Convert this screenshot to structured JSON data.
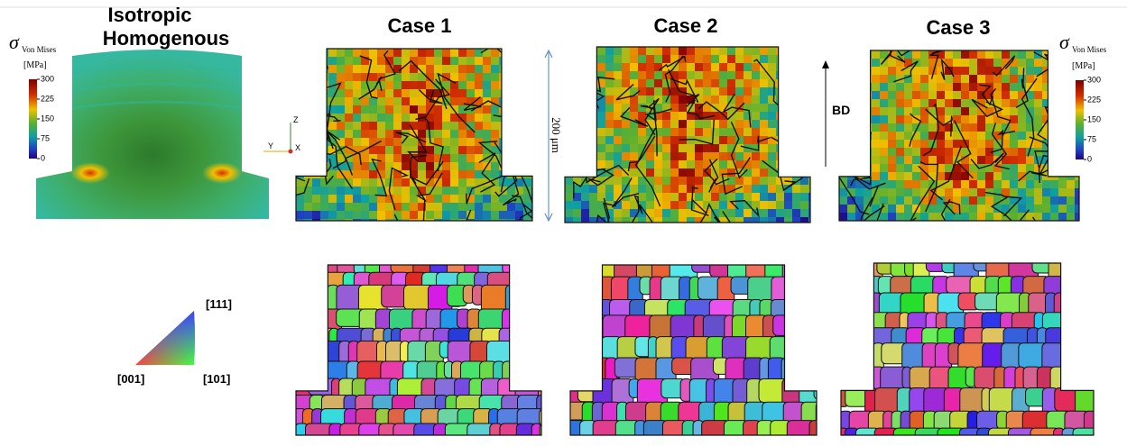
{
  "left_panel": {
    "title_lines": [
      "Isotropic",
      "Homogenous"
    ]
  },
  "cases": [
    "Case 1",
    "Case 2",
    "Case 3"
  ],
  "colorbar": {
    "symbol": "σ",
    "subscript": "Von Mises",
    "unit": "[MPa]",
    "ticks": [
      300,
      225,
      150,
      75,
      0
    ]
  },
  "scale_bar": "200 μm",
  "build_direction": "BD",
  "axes": {
    "z": "Z",
    "y": "Y",
    "x": "X"
  },
  "ipf": {
    "top": "[111]",
    "left": "[001]",
    "right": "[101]"
  }
}
